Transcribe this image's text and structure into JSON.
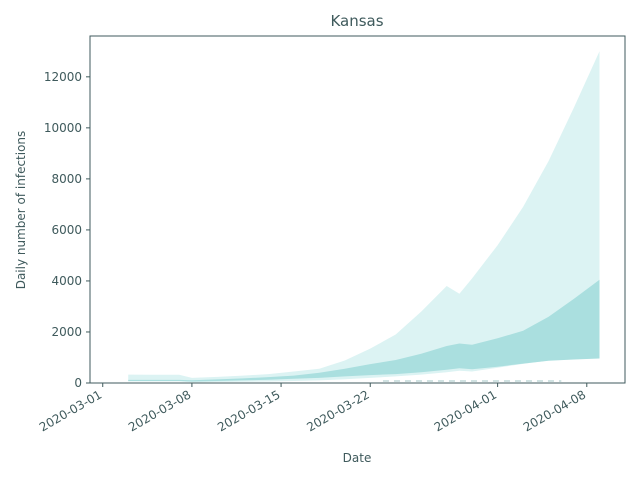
{
  "chart_data": {
    "type": "area",
    "title": "Kansas",
    "xlabel": "Date",
    "ylabel": "Daily number of infections",
    "x_start": "2020-03-03",
    "x_end": "2020-04-09",
    "xlim": [
      "2020-02-29",
      "2020-04-11"
    ],
    "ylim": [
      0,
      13600
    ],
    "xticks": [
      "2020-03-01",
      "2020-03-08",
      "2020-03-15",
      "2020-03-22",
      "2020-04-01",
      "2020-04-08"
    ],
    "yticks": [
      0,
      2000,
      4000,
      6000,
      8000,
      10000,
      12000
    ],
    "grid": false,
    "legend": "none",
    "colors": {
      "outer_band": "#dcf3f3",
      "inner_band": "#aadfdf",
      "axis": "#3f5a5c",
      "dashed": "#c0d8d8"
    },
    "series": [
      {
        "band": "outer",
        "dates": [
          "2020-03-03",
          "2020-03-05",
          "2020-03-07",
          "2020-03-08",
          "2020-03-10",
          "2020-03-12",
          "2020-03-14",
          "2020-03-16",
          "2020-03-18",
          "2020-03-20",
          "2020-03-22",
          "2020-03-24",
          "2020-03-26",
          "2020-03-28",
          "2020-03-29",
          "2020-03-30",
          "2020-04-01",
          "2020-04-03",
          "2020-04-05",
          "2020-04-07",
          "2020-04-09"
        ],
        "lower": [
          60,
          60,
          60,
          30,
          40,
          50,
          60,
          80,
          100,
          150,
          200,
          260,
          330,
          420,
          480,
          450,
          600,
          750,
          880,
          950,
          1000
        ],
        "upper": [
          330,
          320,
          320,
          200,
          240,
          290,
          350,
          450,
          560,
          880,
          1350,
          1900,
          2800,
          3800,
          3500,
          4100,
          5400,
          6900,
          8700,
          10800,
          13000
        ]
      },
      {
        "band": "inner",
        "dates": [
          "2020-03-03",
          "2020-03-05",
          "2020-03-07",
          "2020-03-08",
          "2020-03-10",
          "2020-03-12",
          "2020-03-14",
          "2020-03-16",
          "2020-03-18",
          "2020-03-20",
          "2020-03-22",
          "2020-03-24",
          "2020-03-26",
          "2020-03-28",
          "2020-03-29",
          "2020-03-30",
          "2020-04-01",
          "2020-04-03",
          "2020-04-05",
          "2020-04-07",
          "2020-04-09"
        ],
        "lower": [
          80,
          80,
          80,
          60,
          80,
          100,
          130,
          170,
          200,
          260,
          310,
          350,
          420,
          520,
          580,
          540,
          640,
          760,
          870,
          920,
          960
        ],
        "upper": [
          120,
          120,
          120,
          110,
          140,
          180,
          230,
          290,
          400,
          560,
          740,
          900,
          1150,
          1450,
          1550,
          1500,
          1750,
          2050,
          2600,
          3300,
          4050
        ]
      }
    ]
  }
}
